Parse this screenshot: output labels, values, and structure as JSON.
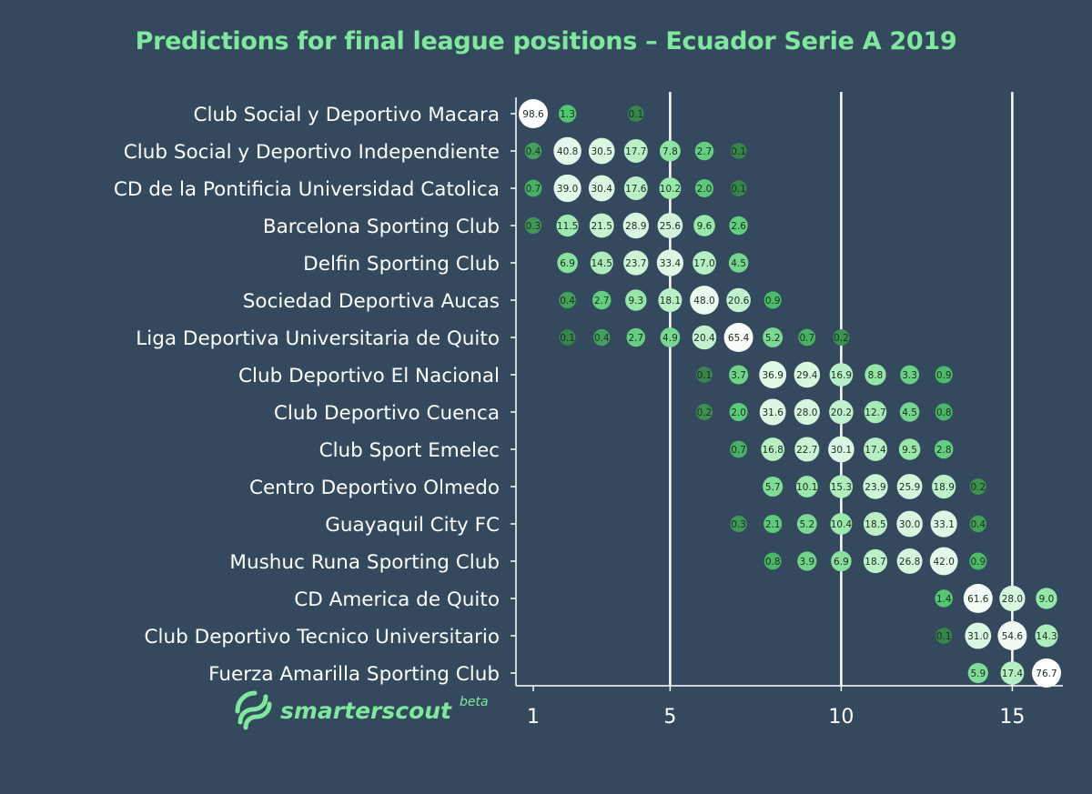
{
  "title": "Predictions for final league positions – Ecuador Serie A 2019",
  "logo": {
    "text_main": "smarterscout",
    "text_beta": "beta"
  },
  "colors": {
    "background": "#34495e",
    "title": "#7ee89c",
    "text": "#ffffff",
    "low": "#2f6a3c",
    "high": "#ffffff",
    "logo": "#7ee89c"
  },
  "chart_data": {
    "type": "scatter",
    "title": "Predictions for final league positions – Ecuador Serie A 2019",
    "xlabel": "",
    "ylabel": "",
    "xlim": [
      0.5,
      16.5
    ],
    "x_ticks": [
      1,
      5,
      10,
      15
    ],
    "vertical_gridlines_at": [
      5,
      10,
      15
    ],
    "value_meaning": "probability (%) of finishing in each league position",
    "teams": [
      {
        "name": "Club Social y Deportivo Macara",
        "predictions": [
          [
            1,
            98.6
          ],
          [
            2,
            1.3
          ],
          [
            4,
            0.1
          ]
        ]
      },
      {
        "name": "Club Social y Deportivo Independiente",
        "predictions": [
          [
            1,
            0.4
          ],
          [
            2,
            40.8
          ],
          [
            3,
            30.5
          ],
          [
            4,
            17.7
          ],
          [
            5,
            7.8
          ],
          [
            6,
            2.7
          ],
          [
            7,
            0.1
          ]
        ]
      },
      {
        "name": "CD de la Pontificia Universidad Catolica",
        "predictions": [
          [
            1,
            0.7
          ],
          [
            2,
            39.0
          ],
          [
            3,
            30.4
          ],
          [
            4,
            17.6
          ],
          [
            5,
            10.2
          ],
          [
            6,
            2.0
          ],
          [
            7,
            0.1
          ]
        ]
      },
      {
        "name": "Barcelona Sporting Club",
        "predictions": [
          [
            1,
            0.3
          ],
          [
            2,
            11.5
          ],
          [
            3,
            21.5
          ],
          [
            4,
            28.9
          ],
          [
            5,
            25.6
          ],
          [
            6,
            9.6
          ],
          [
            7,
            2.6
          ]
        ]
      },
      {
        "name": "Delfin Sporting Club",
        "predictions": [
          [
            2,
            6.9
          ],
          [
            3,
            14.5
          ],
          [
            4,
            23.7
          ],
          [
            5,
            33.4
          ],
          [
            6,
            17.0
          ],
          [
            7,
            4.5
          ]
        ]
      },
      {
        "name": "Sociedad Deportiva Aucas",
        "predictions": [
          [
            2,
            0.4
          ],
          [
            3,
            2.7
          ],
          [
            4,
            9.3
          ],
          [
            5,
            18.1
          ],
          [
            6,
            48.0
          ],
          [
            7,
            20.6
          ],
          [
            8,
            0.9
          ]
        ]
      },
      {
        "name": "Liga Deportiva Universitaria de Quito",
        "predictions": [
          [
            2,
            0.1
          ],
          [
            3,
            0.4
          ],
          [
            4,
            2.7
          ],
          [
            5,
            4.9
          ],
          [
            6,
            20.4
          ],
          [
            7,
            65.4
          ],
          [
            8,
            5.2
          ],
          [
            9,
            0.7
          ],
          [
            10,
            0.2
          ]
        ]
      },
      {
        "name": "Club Deportivo El Nacional",
        "predictions": [
          [
            6,
            0.1
          ],
          [
            7,
            3.7
          ],
          [
            8,
            36.9
          ],
          [
            9,
            29.4
          ],
          [
            10,
            16.9
          ],
          [
            11,
            8.8
          ],
          [
            12,
            3.3
          ],
          [
            13,
            0.9
          ]
        ]
      },
      {
        "name": "Club Deportivo Cuenca",
        "predictions": [
          [
            6,
            0.2
          ],
          [
            7,
            2.0
          ],
          [
            8,
            31.6
          ],
          [
            9,
            28.0
          ],
          [
            10,
            20.2
          ],
          [
            11,
            12.7
          ],
          [
            12,
            4.5
          ],
          [
            13,
            0.8
          ]
        ]
      },
      {
        "name": "Club Sport Emelec",
        "predictions": [
          [
            7,
            0.7
          ],
          [
            8,
            16.8
          ],
          [
            9,
            22.7
          ],
          [
            10,
            30.1
          ],
          [
            11,
            17.4
          ],
          [
            12,
            9.5
          ],
          [
            13,
            2.8
          ]
        ]
      },
      {
        "name": "Centro Deportivo Olmedo",
        "predictions": [
          [
            8,
            5.7
          ],
          [
            9,
            10.1
          ],
          [
            10,
            15.3
          ],
          [
            11,
            23.9
          ],
          [
            12,
            25.9
          ],
          [
            13,
            18.9
          ],
          [
            14,
            0.2
          ]
        ]
      },
      {
        "name": "Guayaquil City FC",
        "predictions": [
          [
            7,
            0.3
          ],
          [
            8,
            2.1
          ],
          [
            9,
            5.2
          ],
          [
            10,
            10.4
          ],
          [
            11,
            18.5
          ],
          [
            12,
            30.0
          ],
          [
            13,
            33.1
          ],
          [
            14,
            0.4
          ]
        ]
      },
      {
        "name": "Mushuc Runa Sporting Club",
        "predictions": [
          [
            8,
            0.8
          ],
          [
            9,
            3.9
          ],
          [
            10,
            6.9
          ],
          [
            11,
            18.7
          ],
          [
            12,
            26.8
          ],
          [
            13,
            42.0
          ],
          [
            14,
            0.9
          ]
        ]
      },
      {
        "name": "CD America de Quito",
        "predictions": [
          [
            13,
            1.4
          ],
          [
            14,
            61.6
          ],
          [
            15,
            28.0
          ],
          [
            16,
            9.0
          ]
        ]
      },
      {
        "name": "Club Deportivo Tecnico Universitario",
        "predictions": [
          [
            13,
            0.1
          ],
          [
            14,
            31.0
          ],
          [
            15,
            54.6
          ],
          [
            16,
            14.3
          ]
        ]
      },
      {
        "name": "Fuerza Amarilla Sporting Club",
        "predictions": [
          [
            14,
            5.9
          ],
          [
            15,
            17.4
          ],
          [
            16,
            76.7
          ]
        ]
      }
    ]
  }
}
